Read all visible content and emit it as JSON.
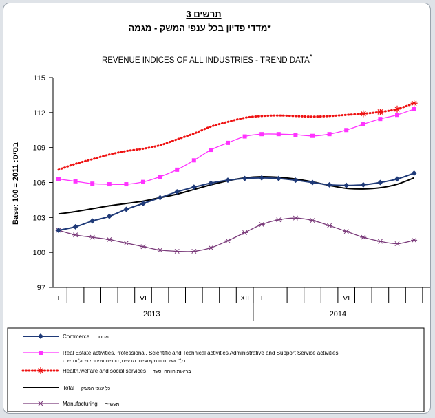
{
  "header": {
    "hebrew_title_line1": "תרשים 3",
    "hebrew_title_line2": "מדדי פדיון בכל ענפי המשק - מגמה",
    "hebrew_title_mark": "*"
  },
  "chart_data": {
    "type": "line",
    "title": "REVENUE INDICES OF ALL INDUSTRIES  - TREND DATA",
    "title_mark": "*",
    "ylabel": "Base: 100 = 2011 :בסיס",
    "ylim": [
      97,
      115
    ],
    "yticks": [
      97,
      100,
      103,
      106,
      109,
      112,
      115
    ],
    "grid": false,
    "legend_position": "bottom",
    "x": [
      "2013-01",
      "2013-02",
      "2013-03",
      "2013-04",
      "2013-05",
      "2013-06",
      "2013-07",
      "2013-08",
      "2013-09",
      "2013-10",
      "2013-11",
      "2013-12",
      "2014-01",
      "2014-02",
      "2014-03",
      "2014-04",
      "2014-05",
      "2014-06",
      "2014-07",
      "2014-08",
      "2014-09",
      "2014-10"
    ],
    "month_labels": [
      {
        "index": 0,
        "label": "I"
      },
      {
        "index": 5,
        "label": "VI"
      },
      {
        "index": 11,
        "label": "XII"
      },
      {
        "index": 12,
        "label": "I"
      },
      {
        "index": 17,
        "label": "VI"
      }
    ],
    "year_labels": [
      {
        "label": "2013",
        "from": 0,
        "to": 11
      },
      {
        "label": "2014",
        "from": 12,
        "to": 21
      }
    ],
    "series": [
      {
        "key": "commerce",
        "name": "Commerce",
        "name_he": "מסחר",
        "color": "#1f3a78",
        "marker": "diamond",
        "style": "solid",
        "width": 2,
        "values": [
          101.9,
          102.2,
          102.7,
          103.1,
          103.7,
          104.2,
          104.7,
          105.2,
          105.6,
          105.95,
          106.2,
          106.35,
          106.4,
          106.35,
          106.2,
          106.0,
          105.8,
          105.75,
          105.8,
          106.0,
          106.3,
          106.8
        ]
      },
      {
        "key": "realestate",
        "name": "Real Estate activities,Professional, Scientific and Technical activities  Administrative and Support Service activities",
        "name_he": "נדל\"ן ושירותים מקצועיים, מדעיים, טכניים ושירותי ניהול ותמיכה",
        "color": "#ff33ff",
        "marker": "square",
        "style": "solid",
        "width": 1.3,
        "values": [
          106.3,
          106.1,
          105.9,
          105.85,
          105.85,
          106.05,
          106.5,
          107.1,
          107.9,
          108.8,
          109.4,
          109.95,
          110.15,
          110.15,
          110.1,
          110.0,
          110.15,
          110.5,
          111.0,
          111.45,
          111.8,
          112.3
        ]
      },
      {
        "key": "health",
        "name": "Health,welfare and social services",
        "name_he": "בריאות רווחה וסעד",
        "color": "#ee1111",
        "marker": "star",
        "style": "dotted",
        "width": 3,
        "values": [
          107.1,
          107.6,
          108.0,
          108.4,
          108.7,
          108.9,
          109.2,
          109.7,
          110.2,
          110.8,
          111.2,
          111.55,
          111.7,
          111.75,
          111.7,
          111.65,
          111.7,
          111.8,
          111.9,
          112.05,
          112.3,
          112.8
        ]
      },
      {
        "key": "total",
        "name": "Total",
        "name_he": "כל ענפי המשק",
        "color": "#000000",
        "marker": "none",
        "style": "solid",
        "width": 2,
        "values": [
          103.3,
          103.5,
          103.75,
          104.0,
          104.2,
          104.4,
          104.7,
          105.0,
          105.4,
          105.8,
          106.15,
          106.4,
          106.5,
          106.45,
          106.3,
          106.05,
          105.75,
          105.5,
          105.45,
          105.55,
          105.85,
          106.4
        ]
      },
      {
        "key": "manufacturing",
        "name": "Manufacturing",
        "name_he": "תעשייה",
        "color": "#7a3a7a",
        "marker": "asterisk",
        "style": "solid",
        "width": 1.3,
        "values": [
          101.9,
          101.5,
          101.3,
          101.1,
          100.8,
          100.5,
          100.2,
          100.1,
          100.1,
          100.4,
          101.0,
          101.7,
          102.4,
          102.8,
          102.95,
          102.75,
          102.3,
          101.8,
          101.3,
          100.95,
          100.75,
          101.05
        ]
      }
    ],
    "legend_order": [
      "commerce",
      "realestate",
      "health",
      "total",
      "manufacturing"
    ]
  }
}
